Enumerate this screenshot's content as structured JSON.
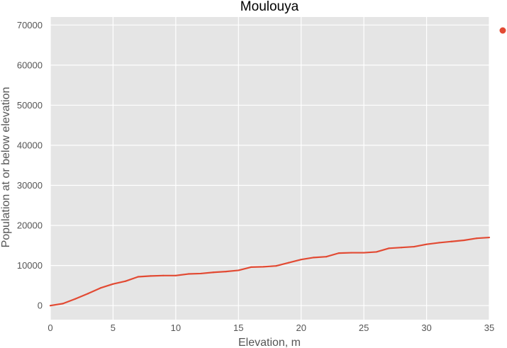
{
  "chart_data": {
    "type": "line",
    "title": "Moulouya",
    "xlabel": "Elevation, m",
    "ylabel": "Population at or below elevation",
    "xlim": [
      0,
      35
    ],
    "ylim": [
      -3500,
      72000
    ],
    "xticks": [
      0,
      5,
      10,
      15,
      20,
      25,
      30,
      35
    ],
    "yticks": [
      0,
      10000,
      20000,
      30000,
      40000,
      50000,
      60000,
      70000
    ],
    "grid": true,
    "legend": "right, single marker without text",
    "series": [
      {
        "color": "#e24a33",
        "x": [
          0,
          1,
          2,
          3,
          4,
          5,
          6,
          7,
          8,
          9,
          10,
          11,
          12,
          13,
          14,
          15,
          16,
          17,
          18,
          19,
          20,
          21,
          22,
          23,
          24,
          25,
          26,
          27,
          28,
          29,
          30,
          31,
          32,
          33,
          34,
          35
        ],
        "values": [
          0,
          500,
          1700,
          3000,
          4400,
          5400,
          6100,
          7200,
          7400,
          7500,
          7500,
          7900,
          8000,
          8300,
          8500,
          8800,
          9600,
          9700,
          9900,
          10700,
          11500,
          12000,
          12200,
          13100,
          13200,
          13200,
          13400,
          14300,
          14500,
          14700,
          15300,
          15700,
          16000,
          16300,
          16800,
          17000
        ]
      }
    ]
  },
  "colors": {
    "plot_background": "#e5e5e5",
    "grid": "#ffffff",
    "line": "#e24a33"
  }
}
